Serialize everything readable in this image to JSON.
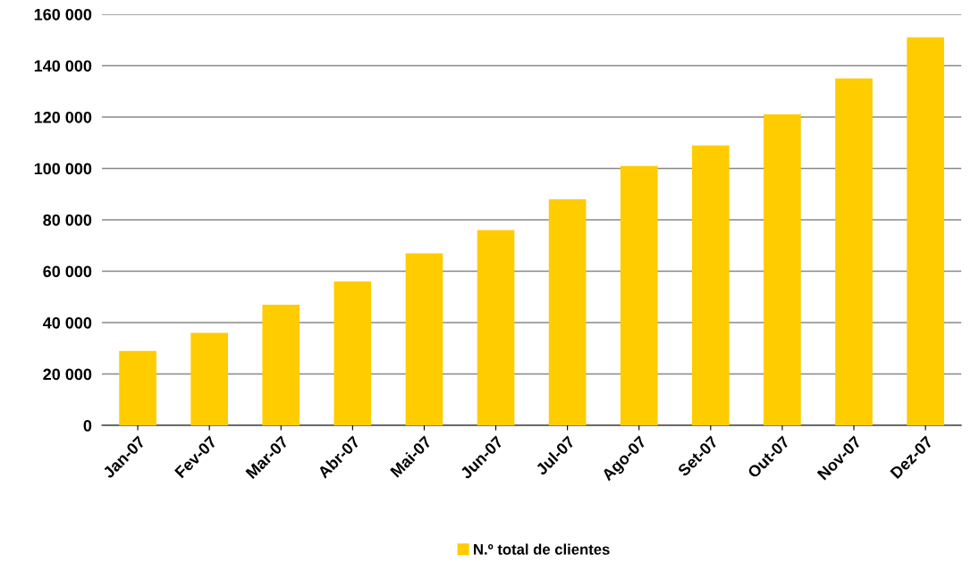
{
  "chart_data": {
    "type": "bar",
    "categories": [
      "Jan-07",
      "Fev-07",
      "Mar-07",
      "Abr-07",
      "Mai-07",
      "Jun-07",
      "Jul-07",
      "Ago-07",
      "Set-07",
      "Out-07",
      "Nov-07",
      "Dez-07"
    ],
    "series": [
      {
        "name": "N.º total de clientes",
        "color": "#ffcc00",
        "values": [
          29000,
          36000,
          47000,
          56000,
          67000,
          76000,
          88000,
          101000,
          109000,
          121000,
          135000,
          151000
        ]
      }
    ],
    "ylim": [
      0,
      160000
    ],
    "yticks": [
      {
        "value": 0,
        "label": "0"
      },
      {
        "value": 20000,
        "label": "20 000"
      },
      {
        "value": 40000,
        "label": "40 000"
      },
      {
        "value": 60000,
        "label": "60 000"
      },
      {
        "value": 80000,
        "label": "80 000"
      },
      {
        "value": 100000,
        "label": "100 000"
      },
      {
        "value": 120000,
        "label": "120 000"
      },
      {
        "value": 140000,
        "label": "140 000"
      },
      {
        "value": 160000,
        "label": "160 000"
      }
    ],
    "grid": "y",
    "legend": "bottom"
  }
}
